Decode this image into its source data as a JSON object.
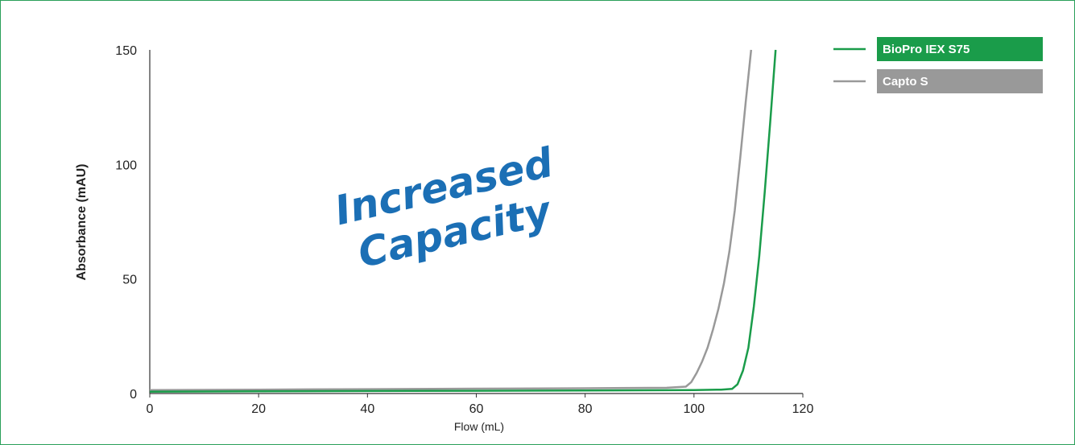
{
  "chart_data": {
    "type": "line",
    "xlabel": "Flow (mL)",
    "ylabel": "Absorbance (mAU)",
    "xlim": [
      0,
      120
    ],
    "ylim": [
      0,
      150
    ],
    "x_ticks": [
      0,
      20,
      40,
      60,
      80,
      100,
      120
    ],
    "y_ticks": [
      0,
      50,
      100,
      150
    ],
    "grid": false,
    "legend_position": "top-right",
    "annotation": {
      "lines": [
        "Increased",
        "Capacity"
      ],
      "color": "#1b6fb5"
    },
    "series": [
      {
        "name": "BioPro IEX S75",
        "color": "#1a9c4a",
        "x": [
          0,
          20,
          40,
          60,
          80,
          100,
          105,
          107,
          108,
          109,
          110,
          111,
          112,
          113,
          114,
          115
        ],
        "y": [
          0.8,
          1.0,
          1.1,
          1.2,
          1.3,
          1.5,
          1.7,
          2.0,
          4,
          10,
          20,
          38,
          60,
          88,
          118,
          150
        ]
      },
      {
        "name": "Capto S",
        "color": "#999999",
        "x": [
          0,
          20,
          40,
          60,
          80,
          95,
          98.5,
          99.5,
          100.5,
          101.5,
          102.5,
          103.5,
          104.5,
          105.5,
          106.5,
          107.5,
          108.5,
          109.5,
          110.5
        ],
        "y": [
          1.5,
          1.7,
          1.9,
          2.1,
          2.3,
          2.5,
          3.0,
          5,
          9,
          14,
          20,
          28,
          37,
          48,
          62,
          80,
          103,
          127,
          150
        ]
      }
    ]
  }
}
